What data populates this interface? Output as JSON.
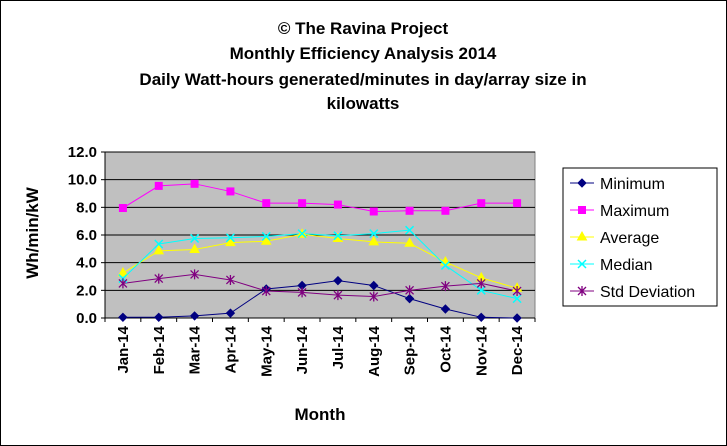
{
  "chart_data": {
    "type": "line",
    "title_lines": [
      "© The Ravina Project",
      "Monthly Efficiency Analysis 2014",
      "Daily Watt-hours generated/minutes in day/array size in",
      "kilowatts"
    ],
    "xlabel": "Month",
    "ylabel": "Wh/min/kW",
    "ylim": [
      0,
      12
    ],
    "ytick_labels": [
      "0.0",
      "2.0",
      "4.0",
      "6.0",
      "8.0",
      "10.0",
      "12.0"
    ],
    "yticks": [
      0,
      2,
      4,
      6,
      8,
      10,
      12
    ],
    "grid": true,
    "legend_position": "right",
    "categories": [
      "Jan-14",
      "Feb-14",
      "Mar-14",
      "Apr-14",
      "May-14",
      "Jun-14",
      "Jul-14",
      "Aug-14",
      "Sep-14",
      "Oct-14",
      "Nov-14",
      "Dec-14"
    ],
    "series": [
      {
        "name": "Minimum",
        "color": "#000080",
        "marker": "diamond",
        "values": [
          0.05,
          0.05,
          0.15,
          0.35,
          2.1,
          2.35,
          2.7,
          2.35,
          1.4,
          0.65,
          0.05,
          0.0
        ]
      },
      {
        "name": "Maximum",
        "color": "#ff00ff",
        "marker": "square",
        "values": [
          7.95,
          9.55,
          9.7,
          9.15,
          8.3,
          8.3,
          8.2,
          7.7,
          7.75,
          7.75,
          8.3,
          8.3
        ]
      },
      {
        "name": "Average",
        "color": "#ffff00",
        "marker": "triangle",
        "values": [
          3.25,
          4.85,
          4.95,
          5.45,
          5.55,
          6.05,
          5.75,
          5.5,
          5.4,
          4.05,
          2.9,
          2.15
        ]
      },
      {
        "name": "Median",
        "color": "#00ffff",
        "marker": "x",
        "values": [
          2.85,
          5.35,
          5.75,
          5.8,
          5.9,
          6.1,
          5.95,
          6.1,
          6.35,
          3.8,
          2.0,
          1.4
        ]
      },
      {
        "name": "Std Deviation",
        "color": "#800080",
        "marker": "star",
        "values": [
          2.5,
          2.85,
          3.15,
          2.75,
          1.95,
          1.85,
          1.65,
          1.55,
          2.0,
          2.3,
          2.5,
          1.95
        ]
      }
    ]
  }
}
